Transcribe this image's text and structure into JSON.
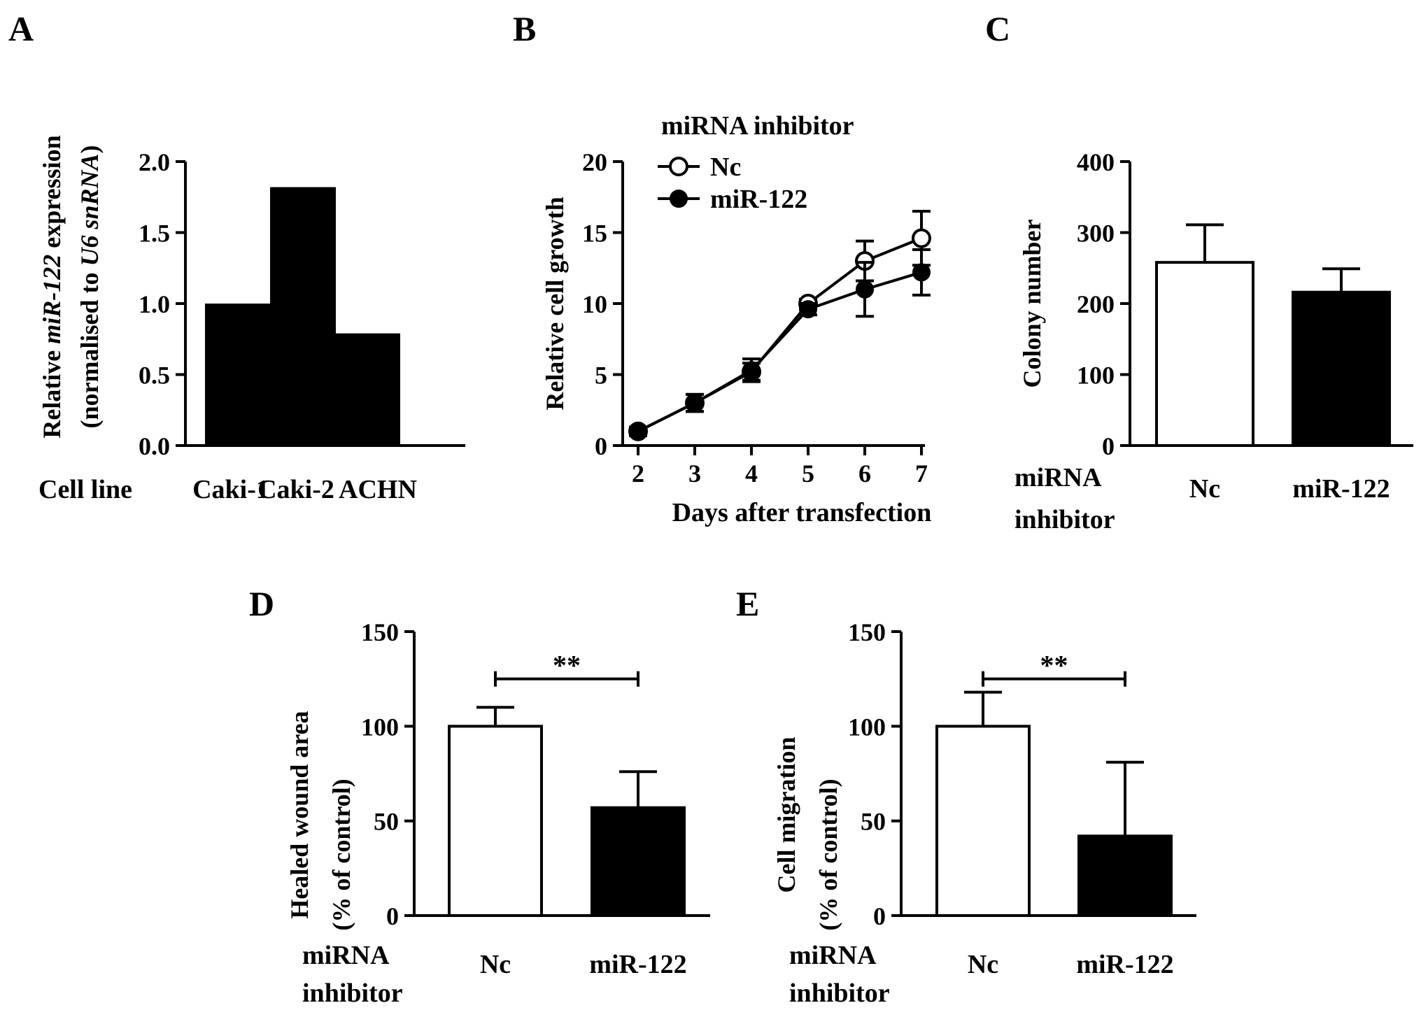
{
  "figure": {
    "panels": {
      "A": {
        "letter": "A",
        "ylabel_line1_pre": "Relative ",
        "ylabel_line1_it": "miR-122",
        "ylabel_line1_post": " expression",
        "ylabel_line2_pre": "(normalised to ",
        "ylabel_line2_it": "U6 snRNA",
        "ylabel_line2_post": ")",
        "xgroup_label": "Cell line"
      },
      "B": {
        "letter": "B",
        "legend_title": "miRNA inhibitor"
      },
      "C": {
        "letter": "C",
        "xgroup_label_line1": "miRNA",
        "xgroup_label_line2": "inhibitor"
      },
      "D": {
        "letter": "D",
        "ylabel_line2": "(% of control)",
        "xgroup_label_line1": "miRNA",
        "xgroup_label_line2": "inhibitor"
      },
      "E": {
        "letter": "E",
        "ylabel_line2": "(% of control)",
        "xgroup_label_line1": "miRNA",
        "xgroup_label_line2": "inhibitor"
      }
    }
  },
  "chart_data": [
    {
      "panel": "A",
      "type": "bar",
      "categories": [
        "Caki-1",
        "Caki-2",
        "ACHN"
      ],
      "values": [
        1.0,
        1.82,
        0.79
      ],
      "ylim": [
        0,
        2.0
      ],
      "yticks": [
        "0.0",
        "0.5",
        "1.0",
        "1.5",
        "2.0"
      ],
      "bar_color": "#000000"
    },
    {
      "panel": "B",
      "type": "line",
      "xlabel": "Days after transfection",
      "ylabel": "Relative cell growth",
      "x": [
        2,
        3,
        4,
        5,
        6,
        7
      ],
      "xticks": [
        "2",
        "3",
        "4",
        "5",
        "6",
        "7"
      ],
      "yticks": [
        "0",
        "5",
        "10",
        "15",
        "20"
      ],
      "ylim": [
        0,
        20
      ],
      "legend": "top-left",
      "series": [
        {
          "name": "Nc",
          "marker": "open-circle",
          "values": [
            1.0,
            3.0,
            5.2,
            10.0,
            13.0,
            14.6
          ],
          "errors": [
            0.3,
            0.6,
            0.6,
            0.3,
            1.4,
            1.9
          ]
        },
        {
          "name": "miR-122",
          "marker": "filled-circle",
          "values": [
            1.0,
            3.0,
            5.3,
            9.6,
            11.0,
            12.2
          ],
          "errors": [
            0.3,
            0.6,
            0.8,
            0.4,
            1.9,
            1.6
          ]
        }
      ]
    },
    {
      "panel": "C",
      "type": "bar",
      "ylabel": "Colony number",
      "categories": [
        "Nc",
        "miR-122"
      ],
      "values": [
        258,
        216
      ],
      "errors": [
        53,
        33
      ],
      "fills": [
        "#ffffff",
        "#000000"
      ],
      "ylim": [
        0,
        400
      ],
      "yticks": [
        "0",
        "100",
        "200",
        "300",
        "400"
      ]
    },
    {
      "panel": "D",
      "type": "bar",
      "ylabel": "Healed wound area",
      "categories": [
        "Nc",
        "miR-122"
      ],
      "values": [
        100,
        57
      ],
      "errors": [
        10,
        19
      ],
      "fills": [
        "#ffffff",
        "#000000"
      ],
      "ylim": [
        0,
        150
      ],
      "yticks": [
        "0",
        "50",
        "100",
        "150"
      ],
      "significance": "**"
    },
    {
      "panel": "E",
      "type": "bar",
      "ylabel": "Cell migration",
      "categories": [
        "Nc",
        "miR-122"
      ],
      "values": [
        100,
        42
      ],
      "errors": [
        18,
        39
      ],
      "fills": [
        "#ffffff",
        "#000000"
      ],
      "ylim": [
        0,
        150
      ],
      "yticks": [
        "0",
        "50",
        "100",
        "150"
      ],
      "significance": "**"
    }
  ]
}
